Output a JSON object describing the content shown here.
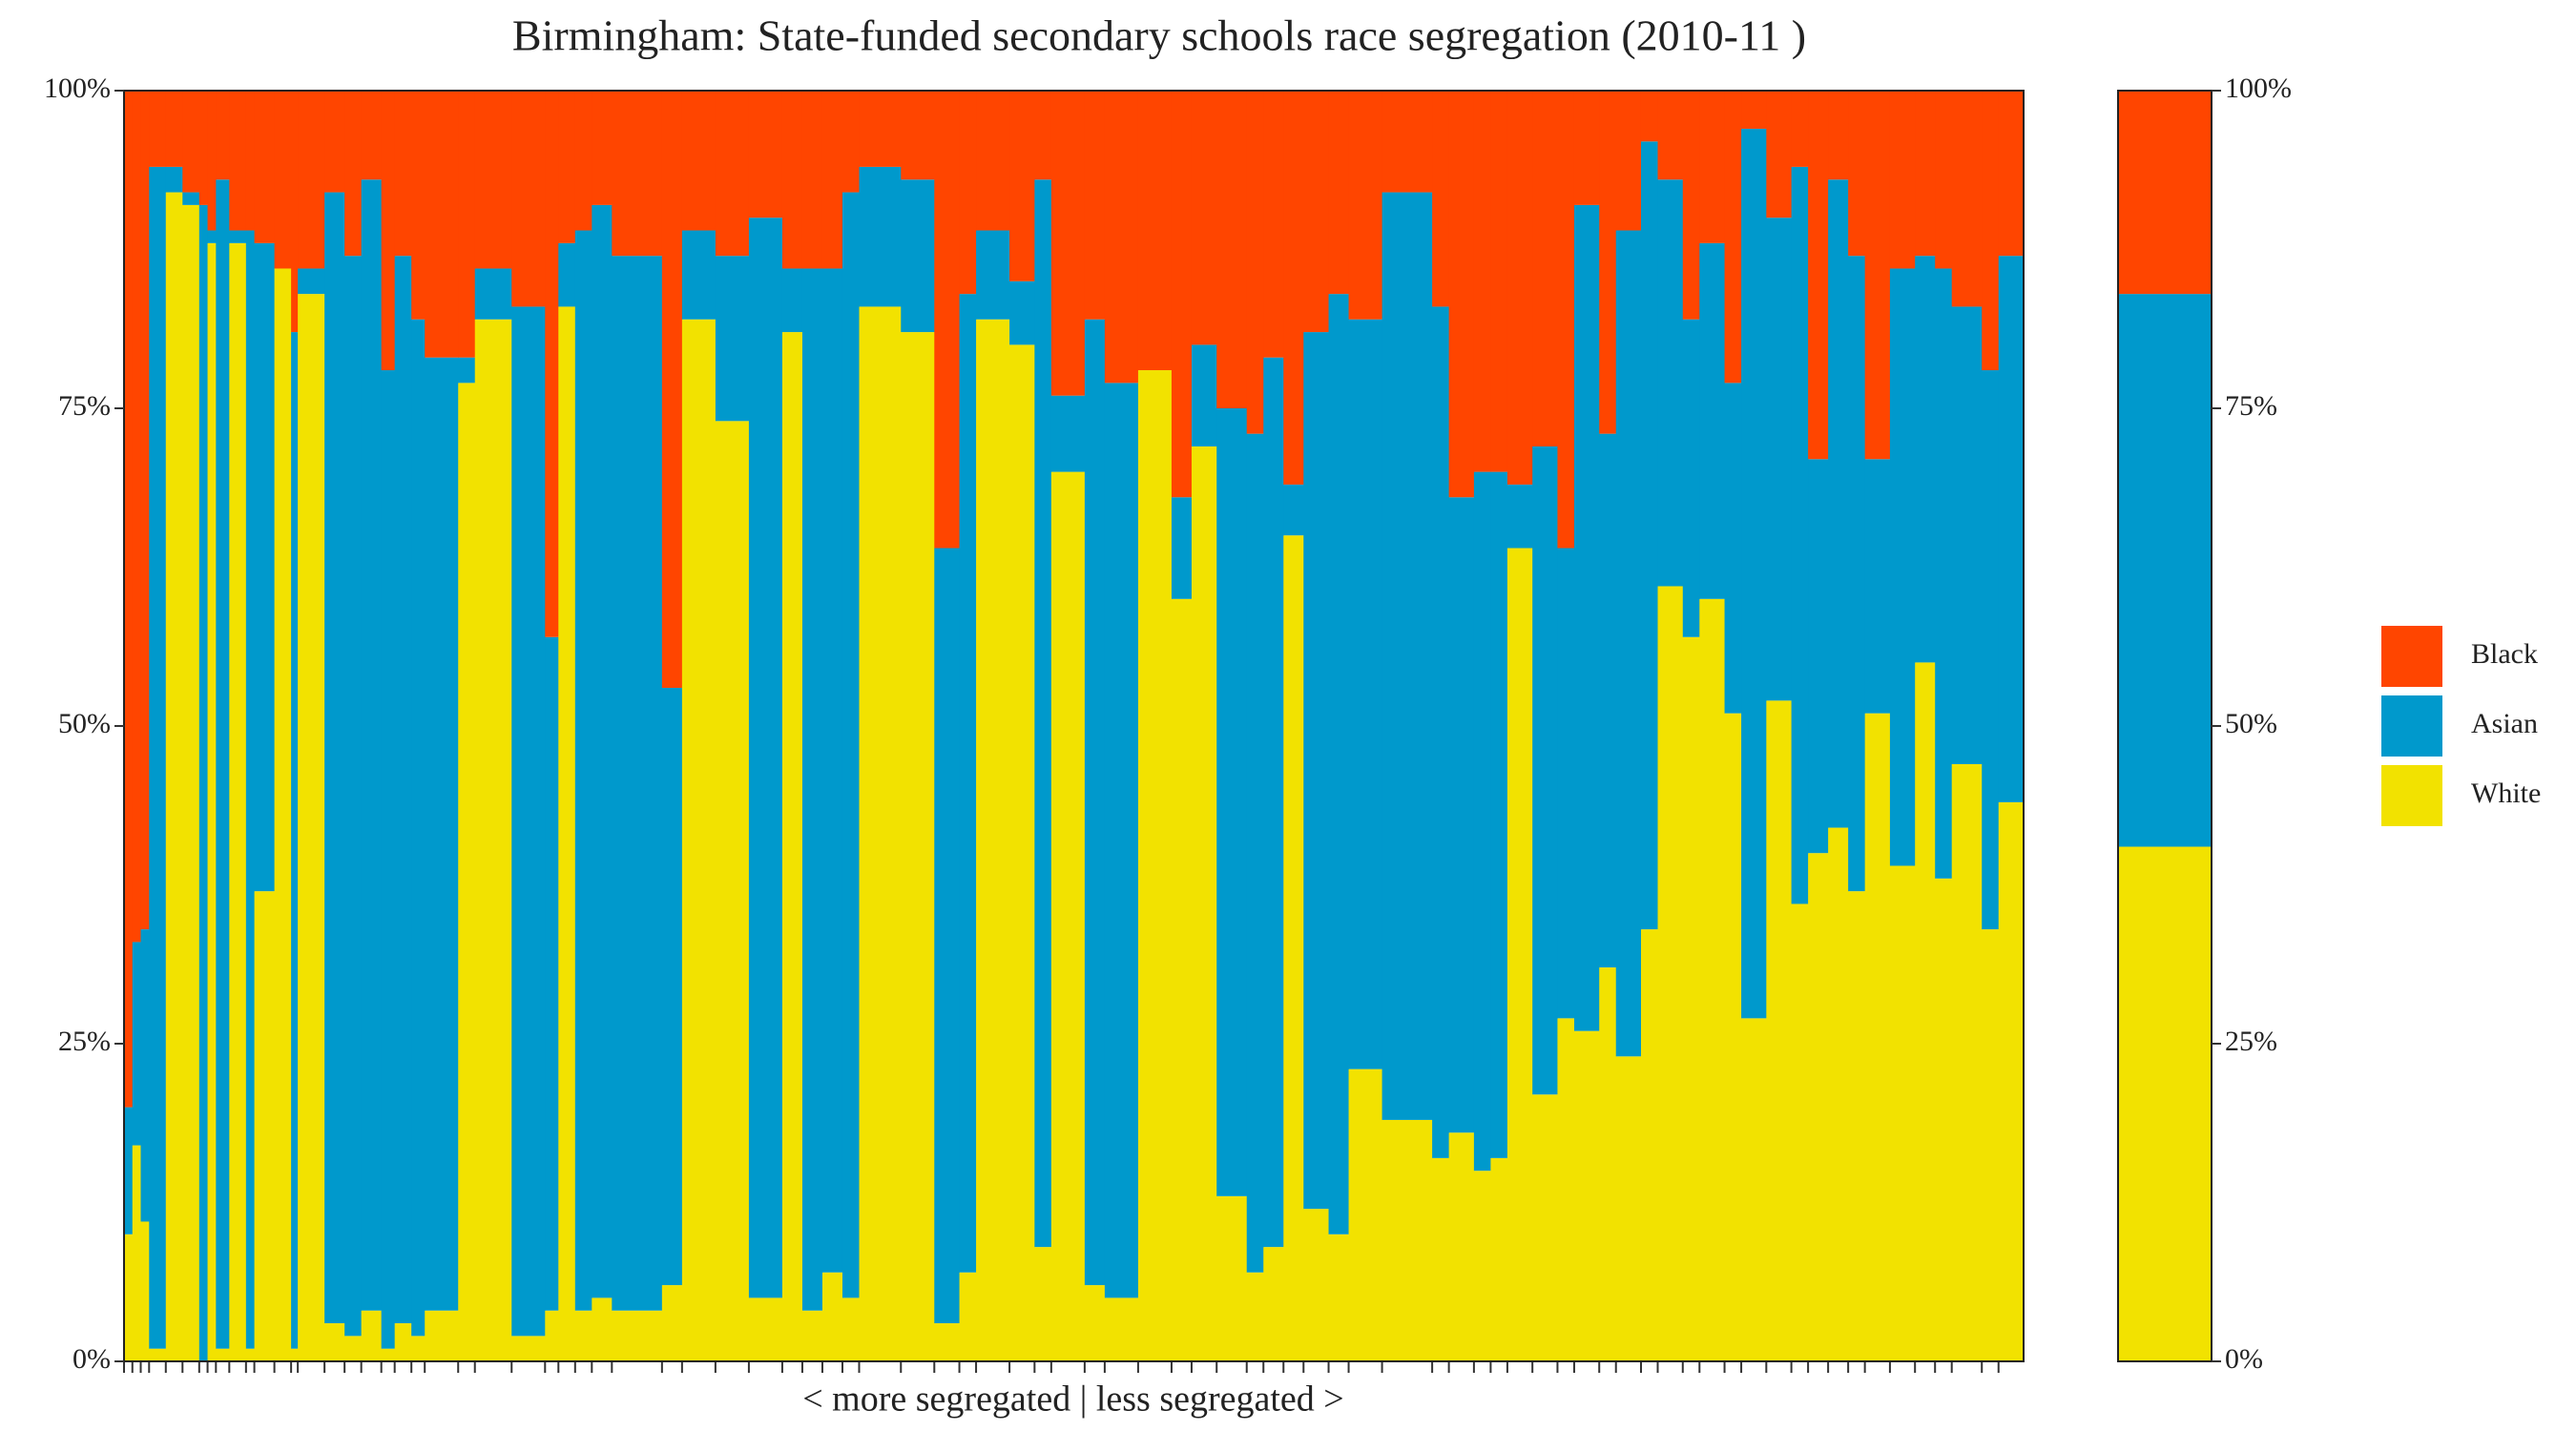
{
  "chart_data": {
    "type": "marimekko",
    "title": "Birmingham: State-funded secondary schools race segregation (2010-11 )",
    "xlabel": "< more segregated | less segregated >",
    "widths": [
      5,
      5,
      5,
      10,
      10,
      10,
      5,
      5,
      8,
      10,
      5,
      12,
      10,
      4,
      16,
      12,
      10,
      12,
      8,
      10,
      8,
      20,
      10,
      22,
      20,
      8,
      10,
      10,
      12,
      30,
      12,
      20,
      20,
      20,
      12,
      12,
      12,
      10,
      25,
      20,
      15,
      10,
      20,
      15,
      10,
      20,
      12,
      20,
      20,
      12,
      15,
      18,
      10,
      12,
      12,
      15,
      12,
      20,
      30,
      10,
      15,
      10,
      10,
      15,
      15,
      10,
      15,
      10,
      15,
      10,
      15,
      10,
      15,
      10,
      15,
      15,
      10,
      12,
      12,
      10,
      15,
      15,
      12,
      10,
      18,
      10,
      15
    ],
    "series": [
      {
        "name": "White",
        "color": "#f2e200",
        "overall": 40.5,
        "values": [
          10,
          17,
          11,
          1,
          92,
          91,
          0,
          88,
          1,
          88,
          1,
          37,
          86,
          1,
          84,
          3,
          2,
          4,
          1,
          3,
          2,
          4,
          77,
          82,
          2,
          4,
          83,
          4,
          5,
          4,
          6,
          82,
          74,
          5,
          81,
          4,
          7,
          5,
          83,
          81,
          3,
          7,
          82,
          80,
          9,
          70,
          6,
          5,
          78,
          60,
          72,
          13,
          7,
          9,
          65,
          12,
          10,
          23,
          19,
          16,
          18,
          15,
          16,
          64,
          21,
          27,
          26,
          31,
          24,
          34,
          61,
          57,
          60,
          51,
          27,
          52,
          36,
          40,
          42,
          37,
          51,
          39,
          55,
          38,
          47,
          34,
          44
        ]
      },
      {
        "name": "Asian",
        "color": "#0099cc",
        "overall": 43.5,
        "values": [
          10,
          16,
          23,
          93,
          2,
          1,
          91,
          1,
          92,
          1,
          88,
          51,
          0,
          80,
          2,
          89,
          85,
          89,
          77,
          84,
          80,
          75,
          2,
          4,
          81,
          53,
          5,
          85,
          86,
          83,
          47,
          7,
          13,
          85,
          5,
          82,
          79,
          87,
          11,
          12,
          61,
          77,
          7,
          5,
          84,
          6,
          76,
          72,
          0,
          8,
          8,
          62,
          66,
          70,
          4,
          69,
          74,
          59,
          73,
          67,
          50,
          55,
          54,
          5,
          51,
          37,
          65,
          42,
          65,
          62,
          32,
          25,
          28,
          26,
          70,
          38,
          58,
          31,
          51,
          50,
          20,
          47,
          32,
          48,
          36,
          44,
          43
        ]
      },
      {
        "name": "Black",
        "color": "#ff4500",
        "overall": 16,
        "values": [
          80,
          67,
          66,
          6,
          6,
          8,
          9,
          11,
          7,
          11,
          11,
          12,
          14,
          19,
          14,
          8,
          13,
          7,
          22,
          13,
          18,
          21,
          21,
          14,
          17,
          43,
          12,
          11,
          9,
          13,
          47,
          11,
          13,
          10,
          14,
          14,
          14,
          8,
          6,
          7,
          36,
          16,
          11,
          15,
          7,
          24,
          18,
          23,
          22,
          32,
          20,
          25,
          27,
          21,
          31,
          19,
          16,
          18,
          8,
          17,
          32,
          30,
          30,
          31,
          28,
          36,
          9,
          27,
          11,
          4,
          7,
          18,
          12,
          23,
          3,
          10,
          6,
          29,
          7,
          13,
          29,
          14,
          13,
          14,
          17,
          22,
          13
        ]
      }
    ],
    "ylim": [
      0,
      100
    ],
    "yticks": [
      {
        "value": 0,
        "label": "0%"
      },
      {
        "value": 25,
        "label": "25%"
      },
      {
        "value": 50,
        "label": "50%"
      },
      {
        "value": 75,
        "label": "75%"
      },
      {
        "value": 100,
        "label": "100%"
      }
    ]
  }
}
